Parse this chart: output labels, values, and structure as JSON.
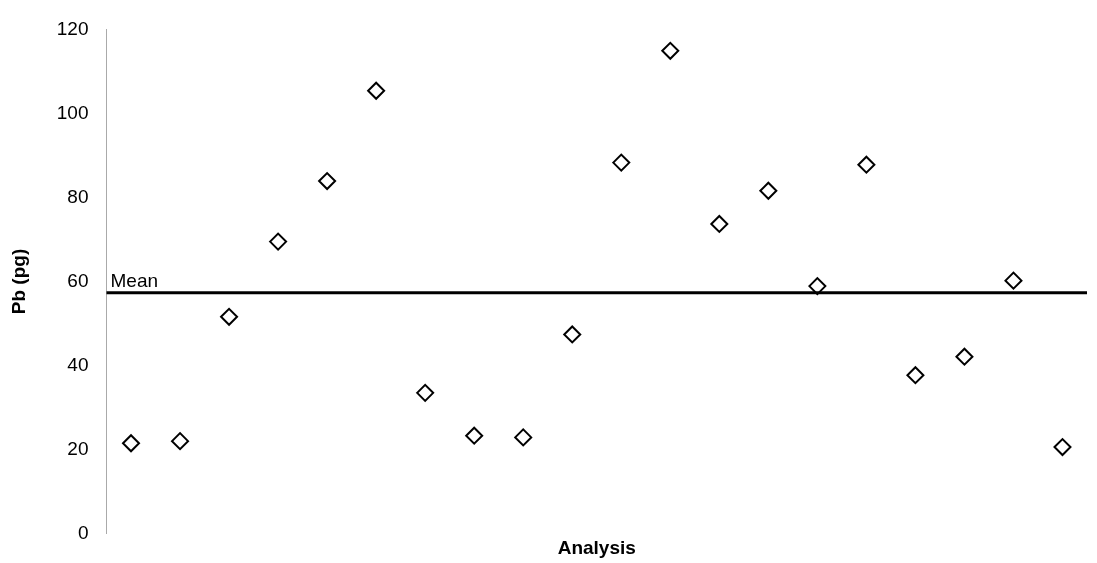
{
  "chart_data": {
    "type": "scatter",
    "xlabel": "Analysis",
    "ylabel": "Pb (pg)",
    "categories": [
      null,
      null,
      null,
      null,
      null,
      null,
      null,
      null,
      null,
      null,
      null,
      null,
      null,
      null,
      null,
      null,
      null,
      null,
      null,
      null
    ],
    "series": [
      {
        "color": "#000000",
        "values": [
          21.5,
          22.0,
          51.6,
          69.5,
          83.9,
          105.4,
          33.5,
          23.3,
          22.9,
          47.4,
          88.3,
          114.9,
          73.7,
          81.6,
          58.9,
          87.8,
          37.7,
          42.1,
          60.2,
          20.6
        ]
      }
    ],
    "ylim": [
      0,
      120
    ],
    "yticks": [
      0,
      20,
      40,
      60,
      80,
      100,
      120
    ],
    "ref_lines": [
      {
        "axis": "y",
        "value": 57.3,
        "label": "Mean",
        "color": "#000000",
        "line_style": "solid"
      }
    ],
    "marker": "diamond",
    "grid": false,
    "legend": false,
    "tick_labels": "y"
  }
}
